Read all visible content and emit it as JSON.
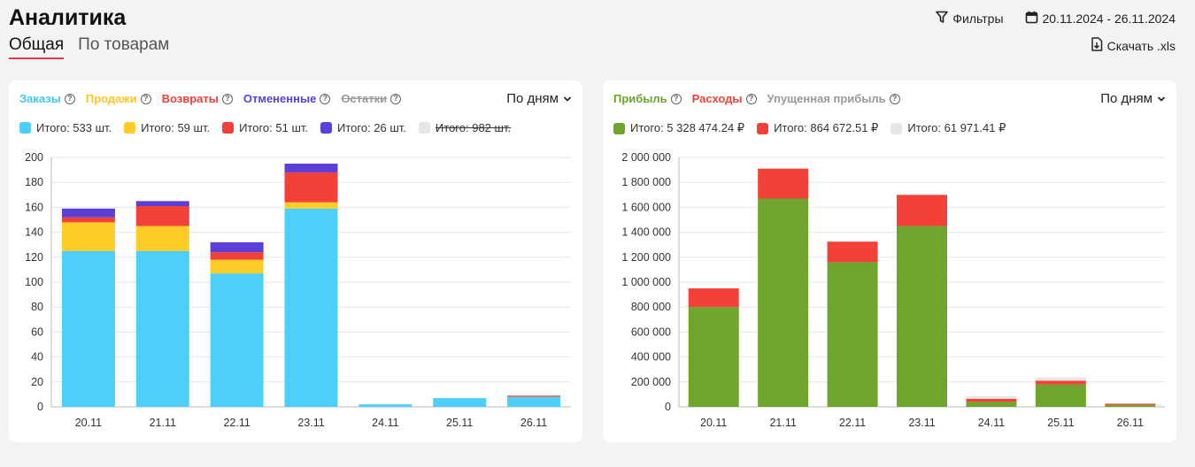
{
  "header": {
    "title": "Аналитика",
    "tabs": [
      {
        "label": "Общая",
        "active": true
      },
      {
        "label": "По товарам",
        "active": false
      }
    ],
    "filters_label": "Фильтры",
    "date_range": "20.11.2024 - 26.11.2024",
    "download_label": "Скачать .xls"
  },
  "help_glyph": "?",
  "left_card": {
    "legend": [
      {
        "label": "Заказы",
        "color": "#3ec8f3"
      },
      {
        "label": "Продажи",
        "color": "#fbc728"
      },
      {
        "label": "Возвраты",
        "color": "#f0403a"
      },
      {
        "label": "Отмененные",
        "color": "#5a3fd4"
      },
      {
        "label": "Остатки",
        "color": "#9a9a9a",
        "struck": true
      }
    ],
    "period_label": "По дням",
    "totals": [
      {
        "label": "Итого: 533 шт.",
        "color": "#4ccff8"
      },
      {
        "label": "Итого: 59 шт.",
        "color": "#ffcb26"
      },
      {
        "label": "Итого: 51 шт.",
        "color": "#f3413a"
      },
      {
        "label": "Итого: 26 шт.",
        "color": "#5b3fd6"
      },
      {
        "label": "Итого: 982 шт.",
        "color": "#e6e6e6",
        "struck": true
      }
    ]
  },
  "right_card": {
    "legend": [
      {
        "label": "Прибыль",
        "color": "#6aa52c"
      },
      {
        "label": "Расходы",
        "color": "#f0403a"
      },
      {
        "label": "Упущенная прибыль",
        "color": "#9a9a9a"
      }
    ],
    "period_label": "По дням",
    "totals": [
      {
        "label": "Итого: 5 328 474.24 ₽",
        "color": "#6da52d"
      },
      {
        "label": "Итого: 864 672.51 ₽",
        "color": "#f3413a"
      },
      {
        "label": "Итого: 61 971.41 ₽",
        "color": "#e6e6e6"
      }
    ]
  },
  "chart_data": [
    {
      "type": "bar",
      "stacked": true,
      "categories": [
        "20.11",
        "21.11",
        "22.11",
        "23.11",
        "24.11",
        "25.11",
        "26.11"
      ],
      "ylim": [
        0,
        200
      ],
      "yticks": [
        "0",
        "20",
        "40",
        "60",
        "80",
        "100",
        "120",
        "140",
        "160",
        "180",
        "200"
      ],
      "grid": true,
      "series": [
        {
          "name": "Заказы",
          "color": "#4ccff8",
          "values": [
            125,
            125,
            107,
            159,
            2,
            7,
            8
          ]
        },
        {
          "name": "Продажи",
          "color": "#ffcb26",
          "values": [
            23,
            20,
            11,
            5,
            0,
            0,
            0
          ]
        },
        {
          "name": "Возвраты",
          "color": "#f3413a",
          "values": [
            4,
            16,
            6,
            24,
            0,
            0,
            1
          ]
        },
        {
          "name": "Отмененные",
          "color": "#5b3fd6",
          "values": [
            7,
            4,
            8,
            7,
            0,
            0,
            0
          ]
        }
      ]
    },
    {
      "type": "bar",
      "stacked": true,
      "categories": [
        "20.11",
        "21.11",
        "22.11",
        "23.11",
        "24.11",
        "25.11",
        "26.11"
      ],
      "ylim": [
        0,
        2000000
      ],
      "yticks": [
        "0",
        "200 000",
        "400 000",
        "600 000",
        "800 000",
        "1 000 000",
        "1 200 000",
        "1 400 000",
        "1 600 000",
        "1 800 000",
        "2 000 000"
      ],
      "grid": true,
      "series": [
        {
          "name": "Прибыль",
          "color": "#6da52d",
          "values": [
            800000,
            1670000,
            1160000,
            1450000,
            40000,
            180000,
            15000
          ]
        },
        {
          "name": "Расходы",
          "color": "#f3413a",
          "values": [
            150000,
            240000,
            165000,
            250000,
            25000,
            30000,
            10000
          ]
        },
        {
          "name": "Упущенная прибыль",
          "color": "#e6e6e6",
          "values": [
            0,
            0,
            0,
            0,
            20000,
            25000,
            5000
          ]
        }
      ]
    }
  ]
}
